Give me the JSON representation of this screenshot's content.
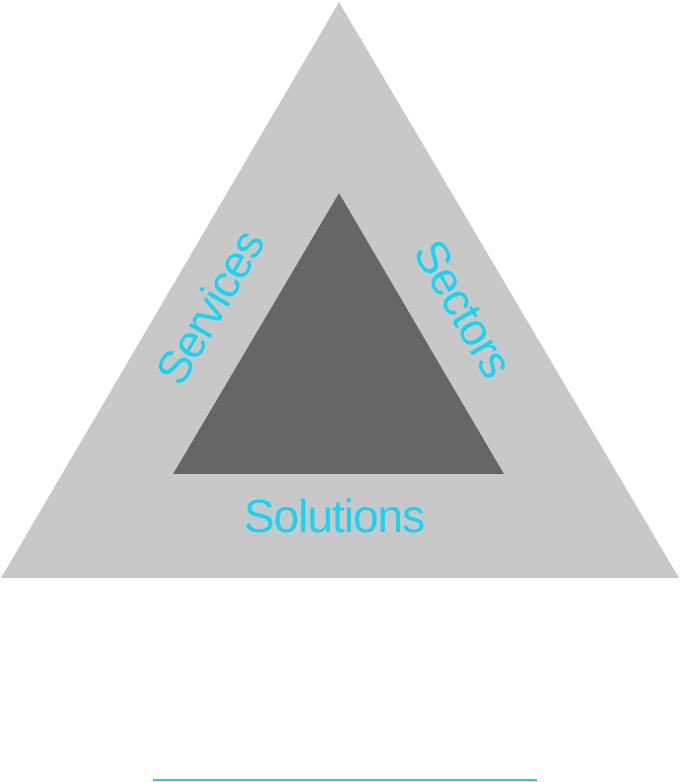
{
  "diagram": {
    "labels": {
      "left": "Services",
      "right": "Sectors",
      "bottom": "Solutions"
    }
  },
  "colors": {
    "outer_triangle": "#c8c8c8",
    "inner_triangle": "#666666",
    "label_text": "#17d4f4",
    "underline": "#17d4f4",
    "background": "#ffffff"
  }
}
